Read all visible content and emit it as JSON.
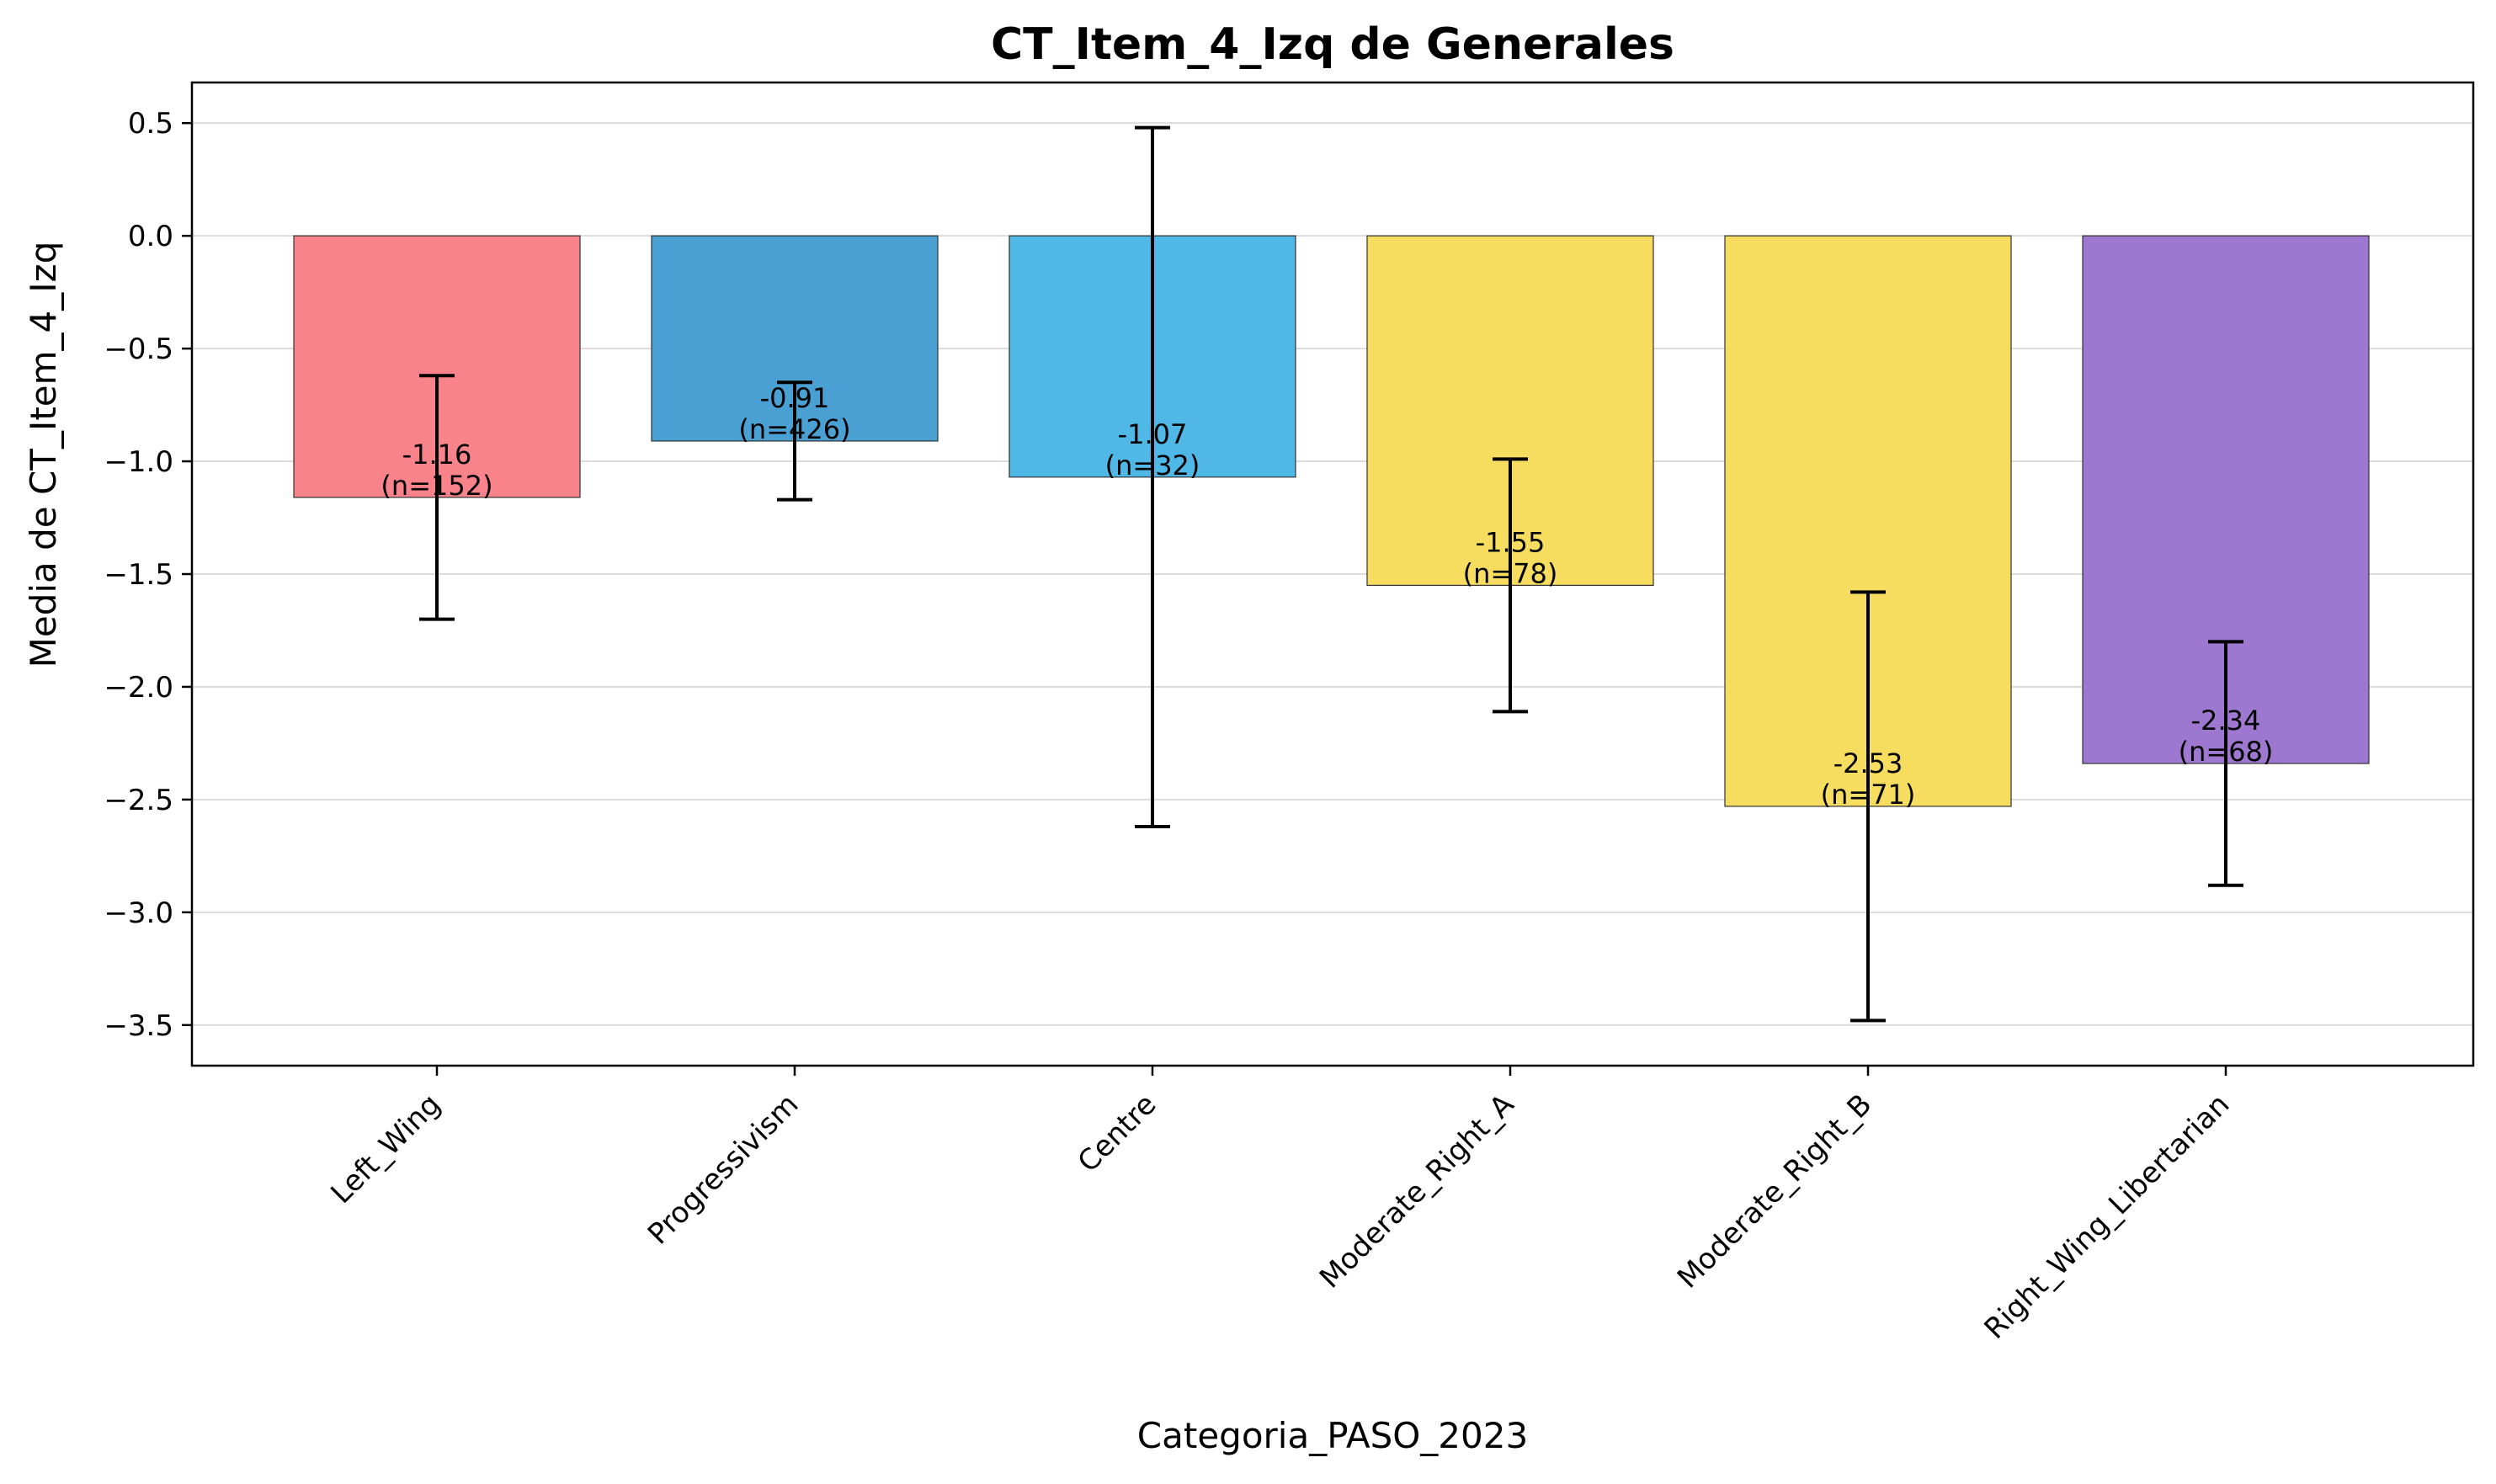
{
  "chart_data": {
    "type": "bar",
    "title": "CT_Item_4_Izq de Generales",
    "xlabel": "Categoria_PASO_2023",
    "ylabel": "Media de CT_Item_4_Izq",
    "categories": [
      "Left_Wing",
      "Progressivism",
      "Centre",
      "Moderate_Right_A",
      "Moderate_Right_B",
      "Right_Wing_Libertarian"
    ],
    "values": [
      -1.16,
      -0.91,
      -1.07,
      -1.55,
      -2.53,
      -2.34
    ],
    "n": [
      152,
      426,
      32,
      78,
      71,
      68
    ],
    "error_low": [
      -1.7,
      -1.17,
      -2.62,
      -2.11,
      -3.48,
      -2.88
    ],
    "error_high": [
      -0.62,
      -0.65,
      0.48,
      -0.99,
      -1.58,
      -1.8
    ],
    "bar_labels": [
      {
        "value": "-1.16",
        "n": "(n=152)"
      },
      {
        "value": "-0.91",
        "n": "(n=426)"
      },
      {
        "value": "-1.07",
        "n": "(n=32)"
      },
      {
        "value": "-1.55",
        "n": "(n=78)"
      },
      {
        "value": "-2.53",
        "n": "(n=71)"
      },
      {
        "value": "-2.34",
        "n": "(n=68)"
      }
    ],
    "colors": [
      "#f8838a",
      "#4aa0d2",
      "#4fb8e6",
      "#f7dd5f",
      "#f7dd5f",
      "#9e78d0"
    ],
    "yticks": [
      "0.5",
      "0.0",
      "−0.5",
      "−1.0",
      "−1.5",
      "−2.0",
      "−2.5",
      "−3.0",
      "−3.5"
    ],
    "ytick_values": [
      0.5,
      0.0,
      -0.5,
      -1.0,
      -1.5,
      -2.0,
      -2.5,
      -3.0,
      -3.5
    ],
    "ylim": [
      -3.68,
      0.68
    ],
    "grid": "y"
  }
}
